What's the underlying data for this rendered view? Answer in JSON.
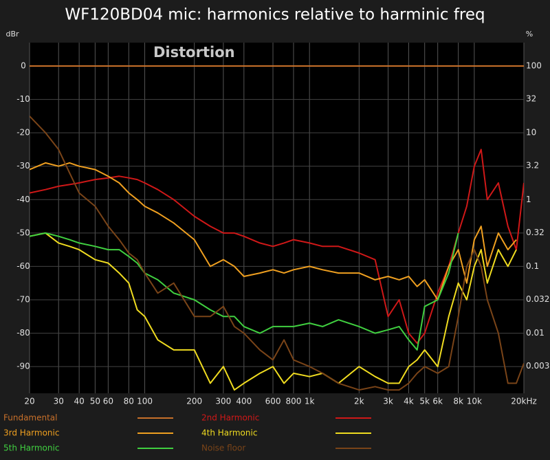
{
  "chart_data": {
    "type": "line",
    "title": "WF120BD04 mic: harmonics relative to harminic freq",
    "annotation": "Distortion",
    "y_label": "dBr",
    "y2_label": "%",
    "xlog": true,
    "y2log": true,
    "grid": true,
    "x": [
      20,
      25,
      30,
      35,
      40,
      50,
      60,
      70,
      80,
      90,
      100,
      120,
      150,
      200,
      250,
      300,
      350,
      400,
      500,
      600,
      700,
      800,
      1000,
      1200,
      1500,
      2000,
      2500,
      3000,
      3500,
      4000,
      4500,
      5000,
      6000,
      7000,
      8000,
      9000,
      10000,
      11000,
      12000,
      14000,
      16000,
      18000,
      20000
    ],
    "xlim": [
      20,
      20000
    ],
    "xticks": [
      20,
      30,
      40,
      50,
      60,
      80,
      100,
      200,
      300,
      400,
      600,
      800,
      {
        "value": 1000,
        "label": "1k"
      },
      {
        "value": 2000,
        "label": "2k"
      },
      {
        "value": 3000,
        "label": "3k"
      },
      {
        "value": 4000,
        "label": "4k"
      },
      {
        "value": 5000,
        "label": "5k"
      },
      {
        "value": 6000,
        "label": "6k"
      },
      {
        "value": 8000,
        "label": "8k"
      },
      {
        "value": 10000,
        "label": "10k"
      },
      {
        "value": 20000,
        "label": "20kHz"
      }
    ],
    "ylim": [
      -98,
      7
    ],
    "yticks": [
      0,
      -10,
      -20,
      -30,
      -40,
      -50,
      -60,
      -70,
      -80,
      -90
    ],
    "y2lim": [
      0.00126,
      223.9
    ],
    "y2ticks": [
      100,
      32,
      10,
      3.2,
      1,
      0.32,
      0.1,
      0.032,
      0.01,
      0.0032
    ],
    "series": [
      {
        "name": "Fundamental",
        "color": "#c8702a",
        "values": [
          0,
          0,
          0,
          0,
          0,
          0,
          0,
          0,
          0,
          0,
          0,
          0,
          0,
          0,
          0,
          0,
          0,
          0,
          0,
          0,
          0,
          0,
          0,
          0,
          0,
          0,
          0,
          0,
          0,
          0,
          0,
          0,
          0,
          0,
          0,
          0,
          0,
          0,
          0,
          0,
          0,
          0,
          0
        ]
      },
      {
        "name": "2nd Harmonic",
        "color": "#d01818",
        "values": [
          -38,
          -37,
          -36,
          -35.5,
          -35,
          -34,
          -33.5,
          -33,
          -33.5,
          -34,
          -35,
          -37,
          -40,
          -45,
          -48,
          -50,
          -50,
          -51,
          -53,
          -54,
          -53,
          -52,
          -53,
          -54,
          -54,
          -56,
          -58,
          -75,
          -70,
          -80,
          -83,
          -80,
          -68,
          -60,
          -50,
          -42,
          -30,
          -25,
          -40,
          -35,
          -48,
          -55,
          -35
        ]
      },
      {
        "name": "3rd Harmonic",
        "color": "#f0a020",
        "values": [
          -31,
          -29,
          -30,
          -29,
          -30,
          -31,
          -33,
          -35,
          -38,
          -40,
          -42,
          -44,
          -47,
          -52,
          -60,
          -58,
          -60,
          -63,
          -62,
          -61,
          -62,
          -61,
          -60,
          -61,
          -62,
          -62,
          -64,
          -63,
          -64,
          -63,
          -66,
          -64,
          -70,
          -60,
          -55,
          -65,
          -52,
          -48,
          -60,
          -50,
          -55,
          -52,
          null
        ]
      },
      {
        "name": "4th Harmonic",
        "color": "#f0dc20",
        "values": [
          -51,
          -50,
          -53,
          -54,
          -55,
          -58,
          -59,
          -62,
          -65,
          -73,
          -75,
          -82,
          -85,
          -85,
          -95,
          -90,
          -97,
          -95,
          -92,
          -90,
          -95,
          -92,
          -93,
          -92,
          -95,
          -90,
          -93,
          -95,
          -95,
          -90,
          -88,
          -85,
          -90,
          -75,
          -65,
          -70,
          -60,
          -55,
          -65,
          -55,
          -60,
          -55,
          null
        ]
      },
      {
        "name": "5th Harmonic",
        "color": "#40d040",
        "values": [
          -51,
          -50,
          -51,
          -52,
          -53,
          -54,
          -55,
          -55,
          -57,
          -59,
          -62,
          -64,
          -68,
          -70,
          -73,
          -75,
          -75,
          -78,
          -80,
          -78,
          -78,
          -78,
          -77,
          -78,
          -76,
          -78,
          -80,
          -79,
          -78,
          -82,
          -85,
          -72,
          -70,
          -62,
          -50,
          null,
          null,
          null,
          null,
          null,
          null,
          null,
          null
        ]
      },
      {
        "name": "Noise floor",
        "color": "#7a4418",
        "values": [
          -15,
          -20,
          -25,
          -32,
          -38,
          -42,
          -48,
          -52,
          -56,
          -58,
          -62,
          -68,
          -65,
          -75,
          -75,
          -72,
          -78,
          -80,
          -85,
          -88,
          -82,
          -88,
          -90,
          -92,
          -95,
          -97,
          -96,
          -97,
          -97,
          -95,
          -92,
          -90,
          -92,
          -90,
          -75,
          -60,
          -55,
          -60,
          -70,
          -80,
          -95,
          -95,
          -89
        ]
      }
    ]
  }
}
